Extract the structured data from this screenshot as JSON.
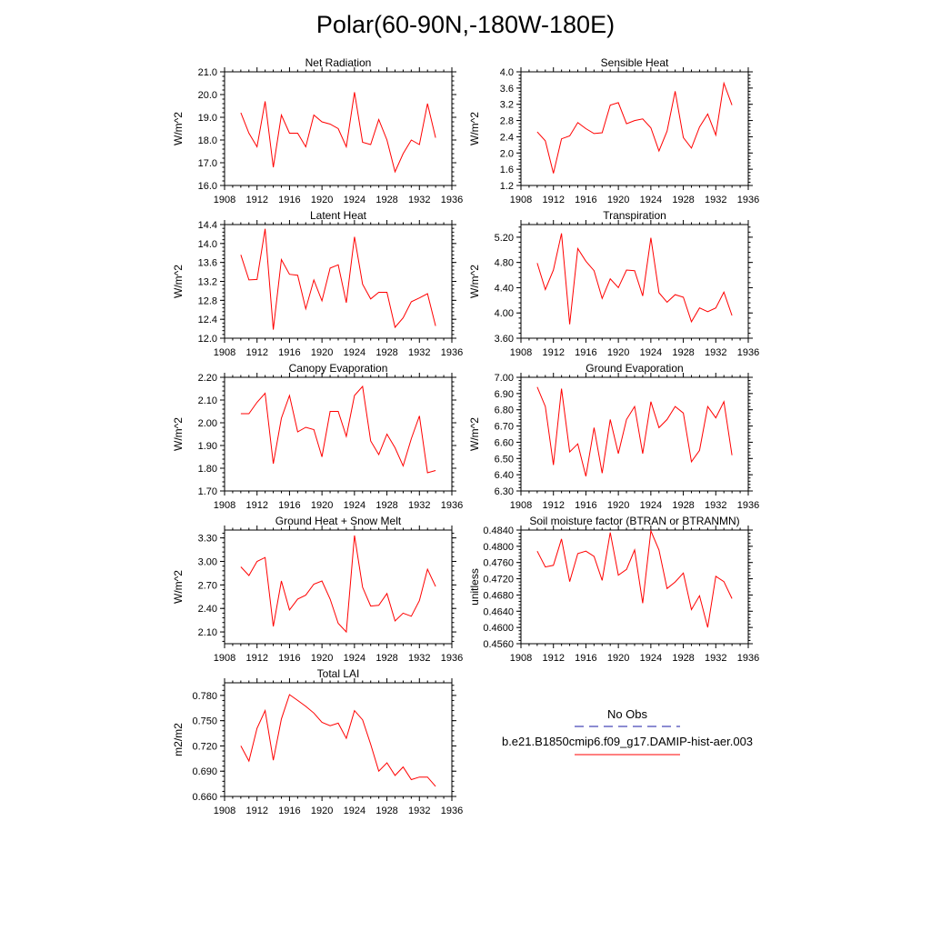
{
  "figure": {
    "title": "Polar(60-90N,-180W-180E)"
  },
  "legend": {
    "entries": [
      {
        "label": "No Obs",
        "color": "#1a1aa6",
        "dash": "dashed"
      },
      {
        "label": "b.e21.B1850cmip6.f09_g17.DAMIP-hist-aer.003",
        "color": "#ff0000",
        "dash": "solid"
      }
    ]
  },
  "chart_data": [
    {
      "type": "line",
      "title": "Net Radiation",
      "ylabel": "W/m^2",
      "xlim": [
        1908,
        1936
      ],
      "xticks": [
        1908,
        1912,
        1916,
        1920,
        1924,
        1928,
        1932,
        1936
      ],
      "ylim": [
        16.0,
        21.0
      ],
      "yticks": [
        "16.0",
        "17.0",
        "18.0",
        "19.0",
        "20.0",
        "21.0"
      ],
      "x": [
        1910,
        1911,
        1912,
        1913,
        1914,
        1915,
        1916,
        1917,
        1918,
        1919,
        1920,
        1921,
        1922,
        1923,
        1924,
        1925,
        1926,
        1927,
        1928,
        1929,
        1930,
        1931,
        1932,
        1933,
        1934
      ],
      "series": [
        {
          "color": "#ff0000",
          "values": [
            19.2,
            18.3,
            17.7,
            19.7,
            16.8,
            19.1,
            18.3,
            18.3,
            17.7,
            19.1,
            18.8,
            18.7,
            18.5,
            17.7,
            20.1,
            17.9,
            17.8,
            18.9,
            18.0,
            16.6,
            17.4,
            18.0,
            17.8,
            19.6,
            18.1
          ]
        }
      ]
    },
    {
      "type": "line",
      "title": "Sensible Heat",
      "ylabel": "W/m^2",
      "xlim": [
        1908,
        1936
      ],
      "xticks": [
        1908,
        1912,
        1916,
        1920,
        1924,
        1928,
        1932,
        1936
      ],
      "ylim": [
        1.2,
        4.0
      ],
      "yticks": [
        "1.2",
        "1.6",
        "2.0",
        "2.4",
        "2.8",
        "3.2",
        "3.6",
        "4.0"
      ],
      "x": [
        1910,
        1911,
        1912,
        1913,
        1914,
        1915,
        1916,
        1917,
        1918,
        1919,
        1920,
        1921,
        1922,
        1923,
        1924,
        1925,
        1926,
        1927,
        1928,
        1929,
        1930,
        1931,
        1932,
        1933,
        1934
      ],
      "series": [
        {
          "color": "#ff0000",
          "values": [
            2.52,
            2.3,
            1.5,
            2.35,
            2.42,
            2.75,
            2.6,
            2.48,
            2.5,
            3.18,
            3.24,
            2.72,
            2.8,
            2.84,
            2.62,
            2.05,
            2.54,
            3.52,
            2.38,
            2.12,
            2.64,
            2.96,
            2.44,
            3.72,
            3.18
          ]
        }
      ]
    },
    {
      "type": "line",
      "title": "Latent Heat",
      "ylabel": "W/m^2",
      "xlim": [
        1908,
        1936
      ],
      "xticks": [
        1908,
        1912,
        1916,
        1920,
        1924,
        1928,
        1932,
        1936
      ],
      "ylim": [
        12.0,
        14.4
      ],
      "yticks": [
        "12.0",
        "12.4",
        "12.8",
        "13.2",
        "13.6",
        "14.0",
        "14.4"
      ],
      "x": [
        1910,
        1911,
        1912,
        1913,
        1914,
        1915,
        1916,
        1917,
        1918,
        1919,
        1920,
        1921,
        1922,
        1923,
        1924,
        1925,
        1926,
        1927,
        1928,
        1929,
        1930,
        1931,
        1932,
        1933,
        1934
      ],
      "series": [
        {
          "color": "#ff0000",
          "values": [
            13.76,
            13.23,
            13.24,
            14.31,
            12.18,
            13.66,
            13.35,
            13.33,
            12.62,
            13.23,
            12.79,
            13.48,
            13.55,
            12.75,
            14.14,
            13.14,
            12.83,
            12.97,
            12.97,
            12.23,
            12.43,
            12.77,
            12.85,
            12.94,
            12.26
          ]
        }
      ]
    },
    {
      "type": "line",
      "title": "Transpiration",
      "ylabel": "W/m^2",
      "xlim": [
        1908,
        1936
      ],
      "xticks": [
        1908,
        1912,
        1916,
        1920,
        1924,
        1928,
        1932,
        1936
      ],
      "ylim": [
        3.6,
        5.4
      ],
      "yticks": [
        "3.60",
        "4.00",
        "4.40",
        "4.80",
        "5.20"
      ],
      "x": [
        1910,
        1911,
        1912,
        1913,
        1914,
        1915,
        1916,
        1917,
        1918,
        1919,
        1920,
        1921,
        1922,
        1923,
        1924,
        1925,
        1926,
        1927,
        1928,
        1929,
        1930,
        1931,
        1932,
        1933,
        1934
      ],
      "series": [
        {
          "color": "#ff0000",
          "values": [
            4.79,
            4.37,
            4.68,
            5.26,
            3.82,
            5.02,
            4.82,
            4.67,
            4.23,
            4.54,
            4.4,
            4.68,
            4.67,
            4.27,
            5.19,
            4.32,
            4.17,
            4.29,
            4.25,
            3.86,
            4.08,
            4.02,
            4.08,
            4.33,
            3.96
          ]
        }
      ]
    },
    {
      "type": "line",
      "title": "Canopy Evaporation",
      "ylabel": "W/m^2",
      "xlim": [
        1908,
        1936
      ],
      "xticks": [
        1908,
        1912,
        1916,
        1920,
        1924,
        1928,
        1932,
        1936
      ],
      "ylim": [
        1.7,
        2.2
      ],
      "yticks": [
        "1.70",
        "1.80",
        "1.90",
        "2.00",
        "2.10",
        "2.20"
      ],
      "x": [
        1910,
        1911,
        1912,
        1913,
        1914,
        1915,
        1916,
        1917,
        1918,
        1919,
        1920,
        1921,
        1922,
        1923,
        1924,
        1925,
        1926,
        1927,
        1928,
        1929,
        1930,
        1931,
        1932,
        1933,
        1934
      ],
      "series": [
        {
          "color": "#ff0000",
          "values": [
            2.04,
            2.04,
            2.09,
            2.13,
            1.82,
            2.02,
            2.12,
            1.96,
            1.98,
            1.97,
            1.85,
            2.05,
            2.05,
            1.94,
            2.12,
            2.16,
            1.92,
            1.86,
            1.95,
            1.89,
            1.81,
            1.93,
            2.03,
            1.78,
            1.79
          ]
        }
      ]
    },
    {
      "type": "line",
      "title": "Ground Evaporation",
      "ylabel": "W/m^2",
      "xlim": [
        1908,
        1936
      ],
      "xticks": [
        1908,
        1912,
        1916,
        1920,
        1924,
        1928,
        1932,
        1936
      ],
      "ylim": [
        6.3,
        7.0
      ],
      "yticks": [
        "6.30",
        "6.40",
        "6.50",
        "6.60",
        "6.70",
        "6.80",
        "6.90",
        "7.00"
      ],
      "x": [
        1910,
        1911,
        1912,
        1913,
        1914,
        1915,
        1916,
        1917,
        1918,
        1919,
        1920,
        1921,
        1922,
        1923,
        1924,
        1925,
        1926,
        1927,
        1928,
        1929,
        1930,
        1931,
        1932,
        1933,
        1934
      ],
      "series": [
        {
          "color": "#ff0000",
          "values": [
            6.94,
            6.82,
            6.46,
            6.93,
            6.54,
            6.59,
            6.39,
            6.69,
            6.41,
            6.74,
            6.53,
            6.74,
            6.82,
            6.53,
            6.85,
            6.69,
            6.74,
            6.82,
            6.78,
            6.48,
            6.55,
            6.82,
            6.75,
            6.85,
            6.52
          ]
        }
      ]
    },
    {
      "type": "line",
      "title": "Ground Heat + Snow Melt",
      "ylabel": "W/m^2",
      "xlim": [
        1908,
        1936
      ],
      "xticks": [
        1908,
        1912,
        1916,
        1920,
        1924,
        1928,
        1932,
        1936
      ],
      "ylim": [
        1.95,
        3.4
      ],
      "yticks": [
        "2.10",
        "2.40",
        "2.70",
        "3.00",
        "3.30"
      ],
      "x": [
        1910,
        1911,
        1912,
        1913,
        1914,
        1915,
        1916,
        1917,
        1918,
        1919,
        1920,
        1921,
        1922,
        1923,
        1924,
        1925,
        1926,
        1927,
        1928,
        1929,
        1930,
        1931,
        1932,
        1933,
        1934
      ],
      "series": [
        {
          "color": "#ff0000",
          "values": [
            2.93,
            2.82,
            3.0,
            3.05,
            2.17,
            2.75,
            2.38,
            2.52,
            2.57,
            2.71,
            2.75,
            2.52,
            2.21,
            2.1,
            3.33,
            2.67,
            2.43,
            2.44,
            2.59,
            2.24,
            2.34,
            2.3,
            2.5,
            2.9,
            2.68
          ]
        }
      ]
    },
    {
      "type": "line",
      "title": "Soil moisture factor (BTRAN or BTRANMN)",
      "ylabel": "unitless",
      "xlim": [
        1908,
        1936
      ],
      "xticks": [
        1908,
        1912,
        1916,
        1920,
        1924,
        1928,
        1932,
        1936
      ],
      "ylim": [
        0.456,
        0.484
      ],
      "yticks": [
        "0.4560",
        "0.4600",
        "0.4640",
        "0.4680",
        "0.4720",
        "0.4760",
        "0.4800",
        "0.4840"
      ],
      "x": [
        1910,
        1911,
        1912,
        1913,
        1914,
        1915,
        1916,
        1917,
        1918,
        1919,
        1920,
        1921,
        1922,
        1923,
        1924,
        1925,
        1926,
        1927,
        1928,
        1929,
        1930,
        1931,
        1932,
        1933,
        1934
      ],
      "series": [
        {
          "color": "#ff0000",
          "values": [
            0.4788,
            0.4749,
            0.4753,
            0.4818,
            0.4713,
            0.4782,
            0.4788,
            0.4775,
            0.4716,
            0.4834,
            0.4729,
            0.4743,
            0.4791,
            0.466,
            0.4838,
            0.4791,
            0.4696,
            0.4712,
            0.4734,
            0.4644,
            0.4678,
            0.46,
            0.4726,
            0.4713,
            0.4671
          ]
        }
      ]
    },
    {
      "type": "line",
      "title": "Total LAI",
      "ylabel": "m2/m2",
      "xlim": [
        1908,
        1936
      ],
      "xticks": [
        1908,
        1912,
        1916,
        1920,
        1924,
        1928,
        1932,
        1936
      ],
      "ylim": [
        0.66,
        0.795
      ],
      "yticks": [
        "0.660",
        "0.690",
        "0.720",
        "0.750",
        "0.780"
      ],
      "x": [
        1910,
        1911,
        1912,
        1913,
        1914,
        1915,
        1916,
        1917,
        1918,
        1919,
        1920,
        1921,
        1922,
        1923,
        1924,
        1925,
        1926,
        1927,
        1928,
        1929,
        1930,
        1931,
        1932,
        1933,
        1934
      ],
      "series": [
        {
          "color": "#ff0000",
          "values": [
            0.72,
            0.702,
            0.741,
            0.762,
            0.703,
            0.752,
            0.781,
            0.774,
            0.767,
            0.759,
            0.748,
            0.744,
            0.747,
            0.729,
            0.762,
            0.751,
            0.722,
            0.69,
            0.7,
            0.685,
            0.695,
            0.68,
            0.683,
            0.683,
            0.672
          ]
        }
      ]
    }
  ]
}
